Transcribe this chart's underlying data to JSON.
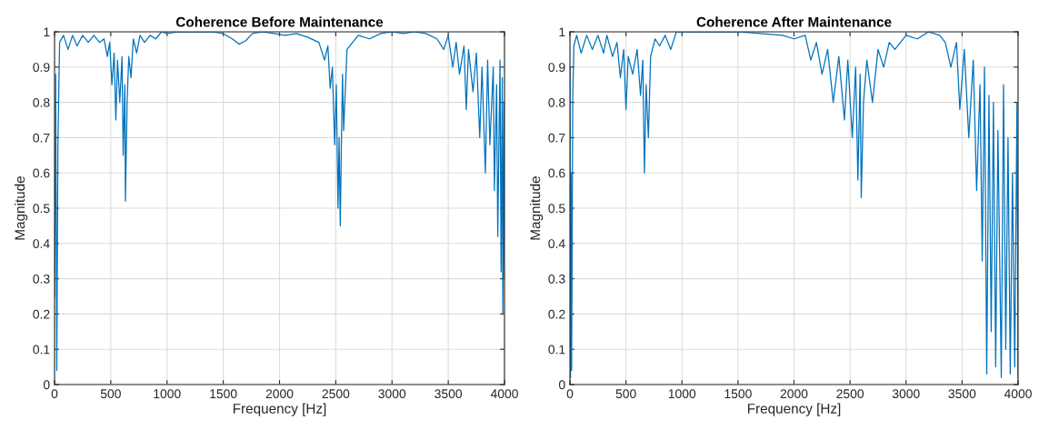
{
  "chart_data": [
    {
      "type": "line",
      "title": "Coherence Before Maintenance",
      "xlabel": "Frequency [Hz]",
      "ylabel": "Magnitude",
      "xlim": [
        0,
        4000
      ],
      "ylim": [
        0,
        1
      ],
      "xticks": [
        0,
        500,
        1000,
        1500,
        2000,
        2500,
        3000,
        3500,
        4000
      ],
      "yticks": [
        0,
        0.1,
        0.2,
        0.3,
        0.4,
        0.5,
        0.6,
        0.7,
        0.8,
        0.9,
        1
      ],
      "grid": true,
      "series": [
        {
          "color": "#0072bd",
          "x": [
            0,
            10,
            20,
            30,
            45,
            80,
            120,
            160,
            200,
            250,
            300,
            350,
            400,
            440,
            470,
            490,
            510,
            530,
            545,
            560,
            580,
            600,
            610,
            625,
            630,
            645,
            660,
            680,
            700,
            730,
            760,
            800,
            850,
            900,
            950,
            1000,
            1100,
            1200,
            1400,
            1500,
            1580,
            1640,
            1700,
            1760,
            1850,
            1950,
            2050,
            2150,
            2250,
            2350,
            2400,
            2430,
            2450,
            2470,
            2490,
            2505,
            2520,
            2530,
            2540,
            2550,
            2560,
            2570,
            2600,
            2650,
            2700,
            2800,
            2900,
            3000,
            3100,
            3200,
            3300,
            3400,
            3460,
            3500,
            3540,
            3570,
            3600,
            3640,
            3660,
            3680,
            3720,
            3750,
            3780,
            3800,
            3830,
            3850,
            3870,
            3900,
            3910,
            3930,
            3940,
            3960,
            3970,
            3980,
            3985,
            3995,
            4000
          ],
          "values": [
            0.25,
            0.88,
            0.04,
            0.68,
            0.97,
            0.99,
            0.95,
            0.99,
            0.96,
            0.99,
            0.97,
            0.99,
            0.97,
            0.98,
            0.93,
            0.97,
            0.85,
            0.94,
            0.75,
            0.92,
            0.8,
            0.93,
            0.65,
            0.85,
            0.52,
            0.8,
            0.93,
            0.87,
            0.98,
            0.94,
            0.99,
            0.97,
            0.99,
            0.98,
            1.0,
            0.995,
            1.0,
            1.0,
            1.0,
            0.995,
            0.98,
            0.965,
            0.975,
            0.995,
            1.0,
            0.995,
            0.99,
            0.995,
            0.985,
            0.97,
            0.92,
            0.96,
            0.84,
            0.9,
            0.68,
            0.85,
            0.5,
            0.7,
            0.45,
            0.68,
            0.88,
            0.72,
            0.95,
            0.97,
            0.99,
            0.98,
            0.995,
            1.0,
            0.995,
            1.0,
            0.995,
            0.98,
            0.95,
            0.99,
            0.9,
            0.97,
            0.88,
            0.96,
            0.78,
            0.95,
            0.83,
            0.94,
            0.7,
            0.9,
            0.6,
            0.92,
            0.68,
            0.9,
            0.55,
            0.85,
            0.42,
            0.92,
            0.32,
            0.87,
            0.2,
            0.8,
            0.3
          ]
        }
      ]
    },
    {
      "type": "line",
      "title": "Coherence After Maintenance",
      "xlabel": "Frequency [Hz]",
      "ylabel": "Magnitude",
      "xlim": [
        0,
        4000
      ],
      "ylim": [
        0,
        1
      ],
      "xticks": [
        0,
        500,
        1000,
        1500,
        2000,
        2500,
        3000,
        3500,
        4000
      ],
      "yticks": [
        0,
        0.1,
        0.2,
        0.3,
        0.4,
        0.5,
        0.6,
        0.7,
        0.8,
        0.9,
        1
      ],
      "grid": true,
      "series": [
        {
          "color": "#0072bd",
          "x": [
            0,
            5,
            10,
            15,
            20,
            25,
            35,
            60,
            100,
            150,
            200,
            250,
            300,
            330,
            380,
            420,
            450,
            480,
            500,
            520,
            560,
            600,
            630,
            650,
            665,
            680,
            700,
            720,
            760,
            800,
            850,
            900,
            950,
            1100,
            1300,
            1500,
            1700,
            1900,
            2000,
            2100,
            2150,
            2200,
            2250,
            2300,
            2350,
            2400,
            2450,
            2480,
            2520,
            2550,
            2570,
            2590,
            2600,
            2620,
            2650,
            2700,
            2750,
            2800,
            2850,
            2900,
            3000,
            3100,
            3200,
            3300,
            3350,
            3400,
            3450,
            3480,
            3520,
            3560,
            3600,
            3630,
            3660,
            3680,
            3700,
            3720,
            3740,
            3760,
            3780,
            3800,
            3820,
            3850,
            3870,
            3890,
            3910,
            3930,
            3950,
            3970,
            3990,
            4000
          ],
          "values": [
            0.9,
            0.02,
            0.6,
            0.04,
            0.43,
            0.82,
            0.96,
            0.99,
            0.94,
            0.99,
            0.95,
            0.99,
            0.94,
            0.99,
            0.93,
            0.97,
            0.87,
            0.95,
            0.78,
            0.93,
            0.88,
            0.95,
            0.82,
            0.92,
            0.6,
            0.85,
            0.7,
            0.93,
            0.98,
            0.96,
            0.99,
            0.95,
            1.0,
            1.0,
            1.0,
            1.0,
            0.995,
            0.99,
            0.98,
            0.99,
            0.92,
            0.97,
            0.88,
            0.95,
            0.8,
            0.93,
            0.75,
            0.92,
            0.7,
            0.9,
            0.58,
            0.88,
            0.53,
            0.8,
            0.92,
            0.8,
            0.95,
            0.9,
            0.97,
            0.95,
            0.99,
            0.98,
            1.0,
            0.99,
            0.97,
            0.9,
            0.97,
            0.78,
            0.95,
            0.7,
            0.92,
            0.55,
            0.85,
            0.35,
            0.9,
            0.03,
            0.82,
            0.15,
            0.8,
            0.05,
            0.72,
            0.02,
            0.85,
            0.1,
            0.7,
            0.03,
            0.6,
            0.05,
            0.8,
            0.02
          ]
        }
      ]
    }
  ]
}
